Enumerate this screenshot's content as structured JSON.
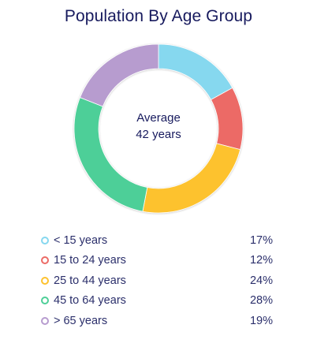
{
  "title": "Population By Age Group",
  "center": {
    "line1": "Average",
    "line2": "42 years"
  },
  "chart_data": {
    "type": "pie",
    "title": "Population By Age Group",
    "categories": [
      "< 15 years",
      "15 to 24 years",
      "25 to 44 years",
      "45 to 64 years",
      "> 65 years"
    ],
    "values": [
      17,
      12,
      24,
      28,
      19
    ],
    "value_labels": [
      "17%",
      "12%",
      "24%",
      "28%",
      "19%"
    ],
    "colors": [
      "#86d8ef",
      "#ec6b66",
      "#fdc22e",
      "#4ecf98",
      "#b79ccf"
    ],
    "donut": true,
    "legend": "bottom"
  }
}
